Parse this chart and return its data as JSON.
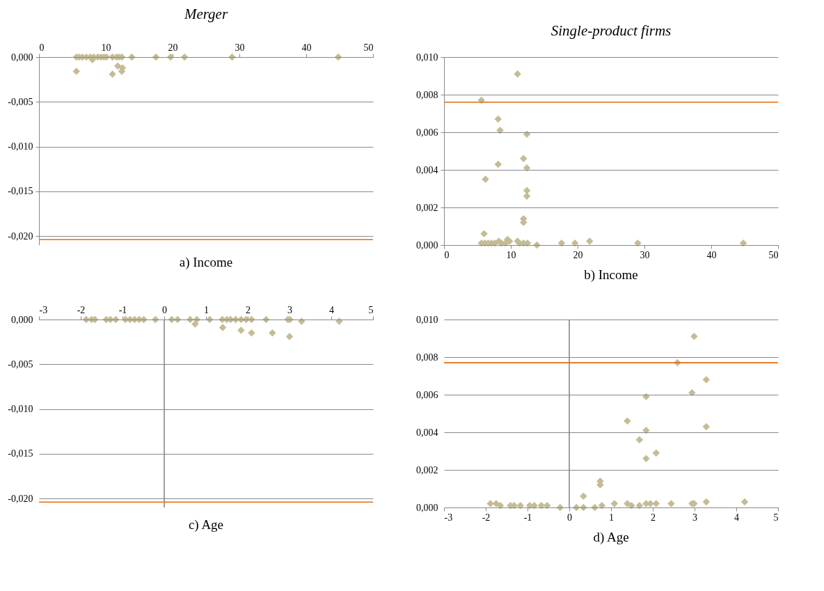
{
  "chart_data": [
    {
      "type": "scatter",
      "title": "Merger",
      "xlabel": "a) Income",
      "xlim": [
        0,
        50
      ],
      "xticks": [
        0,
        10,
        20,
        30,
        40,
        50
      ],
      "ylim": [
        -0.021,
        0
      ],
      "yticks": [
        {
          "value": -0.02,
          "label": "-0,020"
        },
        {
          "value": -0.015,
          "label": "-0,015"
        },
        {
          "value": -0.01,
          "label": "-0,010"
        },
        {
          "value": -0.005,
          "label": "-0,005"
        },
        {
          "value": 0,
          "label": "0,000"
        }
      ],
      "grid": "y",
      "marker": "diamond",
      "series": [
        {
          "color": "#c4bc96",
          "x": [
            5.6,
            6.0,
            6.5,
            7.1,
            7.7,
            8.2,
            8.8,
            9.3,
            9.7,
            10.1,
            11.0,
            11.6,
            12.0,
            12.4,
            13.9,
            17.5,
            19.7,
            21.8,
            28.9,
            44.8,
            5.6,
            11.0,
            12.4,
            11.8,
            12.5,
            8.0
          ],
          "values": [
            0,
            0,
            0,
            0,
            0,
            0,
            0,
            0,
            0,
            0,
            0,
            0,
            0,
            0,
            0,
            0,
            0,
            0,
            0,
            0,
            -0.0016,
            -0.0019,
            -0.0016,
            -0.001,
            -0.0012,
            -0.0003
          ]
        }
      ],
      "ref_lines": [
        {
          "axis": "y",
          "value": -0.0204,
          "color": "#e46c0a"
        }
      ]
    },
    {
      "type": "scatter",
      "title": "Single-product firms",
      "xlabel": "b) Income",
      "xlim": [
        0,
        50
      ],
      "xticks": [
        0,
        10,
        20,
        30,
        40,
        50
      ],
      "ylim": [
        0,
        0.01
      ],
      "yticks": [
        {
          "value": 0,
          "label": "0,000"
        },
        {
          "value": 0.002,
          "label": "0,002"
        },
        {
          "value": 0.004,
          "label": "0,004"
        },
        {
          "value": 0.006,
          "label": "0,006"
        },
        {
          "value": 0.008,
          "label": "0,008"
        },
        {
          "value": 0.01,
          "label": "0,010"
        }
      ],
      "grid": "y",
      "marker": "diamond",
      "series": [
        {
          "color": "#c4bc96",
          "x": [
            5.6,
            11.0,
            8.1,
            8.4,
            12.4,
            8.1,
            6.2,
            11.9,
            12.4,
            12.4,
            12.4,
            11.9,
            11.9,
            6.0,
            5.6,
            6.1,
            6.6,
            7.1,
            7.6,
            8.2,
            8.6,
            9.2,
            9.5,
            9.8,
            11.0,
            11.3,
            11.9,
            12.5,
            13.9,
            17.6,
            19.6,
            21.8,
            29.0,
            44.8
          ],
          "values": [
            0.0077,
            0.0091,
            0.0067,
            0.0061,
            0.0059,
            0.0043,
            0.0035,
            0.0046,
            0.0041,
            0.0029,
            0.0026,
            0.0014,
            0.0012,
            0.0006,
            0.0001,
            0.0001,
            0.0001,
            0.0001,
            0.0001,
            0.0002,
            0.0001,
            0.0001,
            0.0003,
            0.0002,
            0.0002,
            0.0001,
            0.0001,
            0.0001,
            0,
            0.0001,
            0.0001,
            0.0002,
            0.0001,
            0.0001
          ]
        }
      ],
      "ref_lines": [
        {
          "axis": "y",
          "value": 0.0076,
          "color": "#e46c0a"
        }
      ]
    },
    {
      "type": "scatter",
      "xlabel": "c) Age",
      "xlim": [
        -3,
        5
      ],
      "xticks": [
        -3,
        -2,
        -1,
        0,
        1,
        2,
        3,
        4,
        5
      ],
      "ylim": [
        -0.021,
        0
      ],
      "yticks": [
        {
          "value": -0.02,
          "label": "-0,020"
        },
        {
          "value": -0.015,
          "label": "-0,015"
        },
        {
          "value": -0.01,
          "label": "-0,010"
        },
        {
          "value": -0.005,
          "label": "-0,005"
        },
        {
          "value": 0,
          "label": "0,000"
        }
      ],
      "grid": "y",
      "marker": "diamond",
      "series": [
        {
          "color": "#c4bc96",
          "x": [
            -1.87,
            -1.74,
            -1.66,
            -1.39,
            -1.29,
            -1.16,
            -0.93,
            -0.82,
            -0.71,
            -0.6,
            -0.49,
            -0.21,
            0.18,
            0.32,
            0.62,
            0.78,
            1.09,
            1.39,
            1.5,
            1.59,
            1.71,
            1.84,
            1.96,
            2.09,
            2.44,
            2.96,
            3.01,
            3.29,
            4.19,
            0.74,
            1.4,
            1.84,
            2.09,
            2.59,
            3.0
          ],
          "values": [
            0,
            0,
            0,
            0,
            0,
            0,
            0,
            0,
            0,
            0,
            0,
            0,
            0,
            0,
            0,
            0,
            0,
            0,
            0,
            0,
            0,
            0,
            0,
            0,
            0,
            0,
            0,
            -0.0002,
            -0.0002,
            -0.0005,
            -0.0009,
            -0.0012,
            -0.0015,
            -0.0015,
            -0.0019
          ]
        }
      ],
      "ref_lines": [
        {
          "axis": "x",
          "value": 0,
          "color": "#888888"
        },
        {
          "axis": "y",
          "value": -0.0204,
          "color": "#e46c0a"
        }
      ]
    },
    {
      "type": "scatter",
      "xlabel": "d) Age",
      "xlim": [
        -3,
        5
      ],
      "xticks": [
        -3,
        -2,
        -1,
        0,
        1,
        2,
        3,
        4,
        5
      ],
      "ylim": [
        0,
        0.01
      ],
      "yticks": [
        {
          "value": 0,
          "label": "0,000"
        },
        {
          "value": 0.002,
          "label": "0,002"
        },
        {
          "value": 0.004,
          "label": "0,004"
        },
        {
          "value": 0.006,
          "label": "0,006"
        },
        {
          "value": 0.008,
          "label": "0,008"
        },
        {
          "value": 0.01,
          "label": "0,010"
        }
      ],
      "grid": "y",
      "marker": "diamond",
      "series": [
        {
          "color": "#c4bc96",
          "x": [
            2.99,
            2.59,
            3.28,
            2.94,
            1.84,
            1.39,
            1.84,
            3.28,
            1.68,
            2.08,
            1.84,
            0.74,
            0.74,
            0.34,
            -1.89,
            -1.75,
            -1.65,
            -1.41,
            -1.32,
            -1.17,
            -0.95,
            -0.84,
            -0.67,
            -0.53,
            -0.22,
            0.17,
            0.34,
            0.61,
            0.78,
            1.08,
            1.39,
            1.49,
            1.68,
            1.84,
            1.94,
            2.08,
            2.44,
            2.94,
            2.99,
            3.28,
            4.2
          ],
          "values": [
            0.0091,
            0.0077,
            0.0068,
            0.0061,
            0.0059,
            0.0046,
            0.0041,
            0.0043,
            0.0036,
            0.0029,
            0.0026,
            0.0014,
            0.0012,
            0.0006,
            0.0002,
            0.0002,
            0.0001,
            0.0001,
            0.0001,
            0.0001,
            0.0001,
            0.0001,
            0.0001,
            0.0001,
            0,
            0,
            0,
            0,
            0.0001,
            0.0002,
            0.0002,
            0.0001,
            0.0001,
            0.0002,
            0.0002,
            0.0002,
            0.0002,
            0.0002,
            0.0002,
            0.0003,
            0.0003
          ]
        }
      ],
      "ref_lines": [
        {
          "axis": "x",
          "value": 0,
          "color": "#888888"
        },
        {
          "axis": "y",
          "value": 0.0077,
          "color": "#e46c0a"
        }
      ]
    }
  ]
}
